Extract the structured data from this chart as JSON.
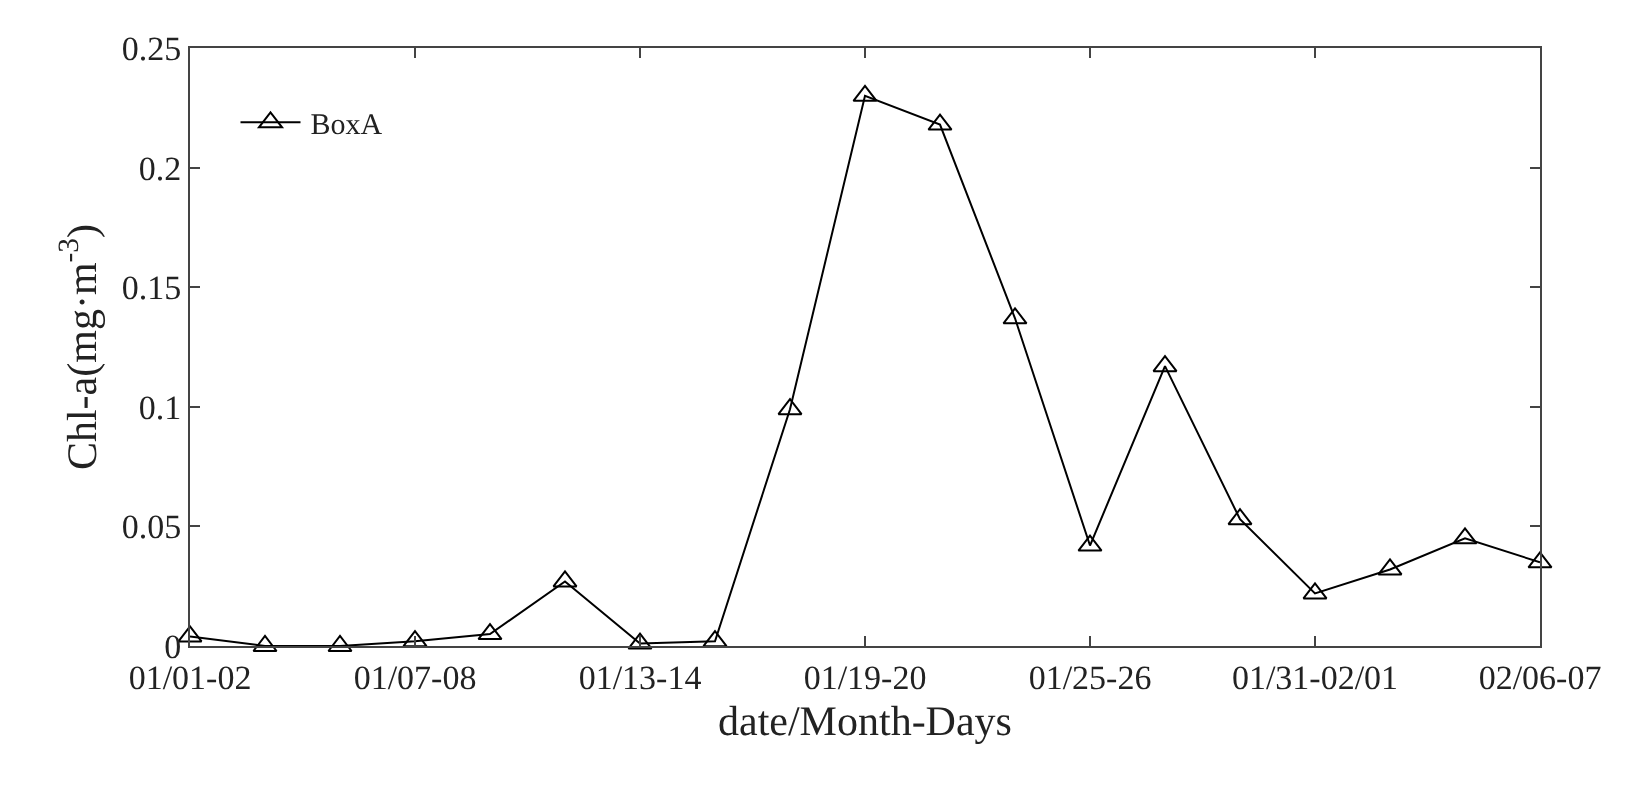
{
  "chart_data": {
    "type": "line",
    "xlabel": "date/Month-Days",
    "ylabel": "Chl-a(mg·m$^{-3}$)",
    "categories": [
      "01/01-02",
      null,
      null,
      "01/07-08",
      null,
      null,
      "01/13-14",
      null,
      null,
      "01/19-20",
      null,
      null,
      "01/25-26",
      null,
      null,
      "01/31-02/01",
      null,
      null,
      "02/06-07"
    ],
    "series": [
      {
        "name": "BoxA",
        "color": "#000000",
        "values": [
          0.004,
          0,
          0,
          0.002,
          0.005,
          0.027,
          0.001,
          0.002,
          0.099,
          0.23,
          0.218,
          0.137,
          0.042,
          0.117,
          0.053,
          0.022,
          0.032,
          0.045,
          0.035
        ]
      }
    ],
    "ylim": [
      0,
      0.25
    ],
    "yticks": [
      0,
      0.05,
      0.1,
      0.15,
      0.2,
      0.25
    ],
    "marker": "triangle",
    "line_style": "solid",
    "legend": "top left"
  }
}
